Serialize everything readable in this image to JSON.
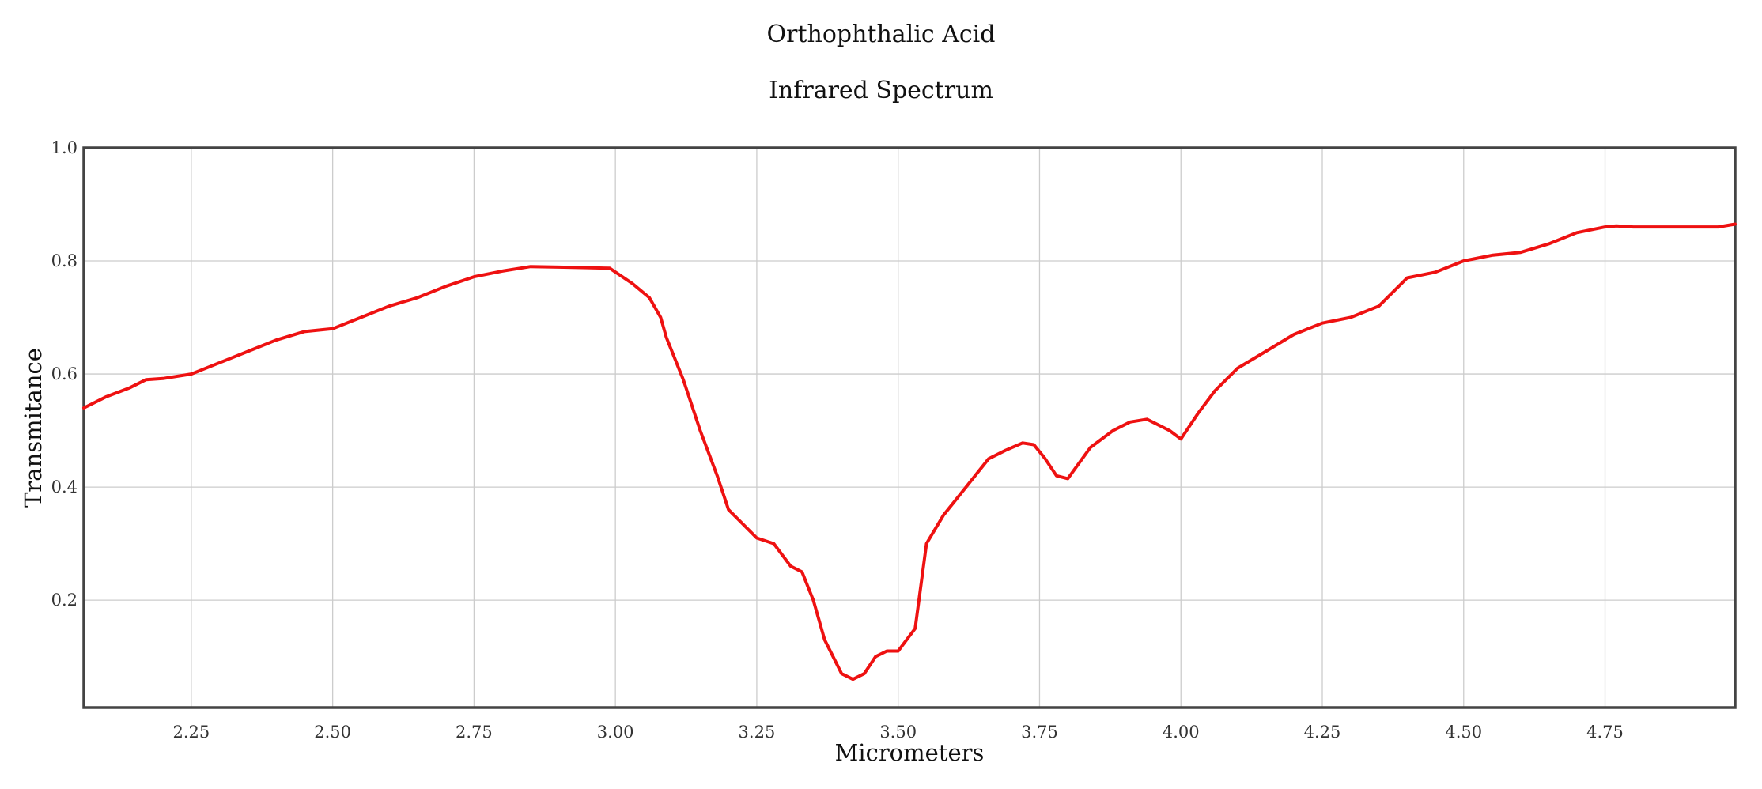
{
  "chart_data": {
    "type": "line",
    "title": "Orthophthalic Acid",
    "subtitle": "Infrared Spectrum",
    "xlabel": "Micrometers",
    "ylabel": "Transmitance",
    "xlim": [
      2.06,
      4.98
    ],
    "ylim": [
      0.01,
      1.0
    ],
    "xticks": [
      2.25,
      2.5,
      2.75,
      3.0,
      3.25,
      3.5,
      3.75,
      4.0,
      4.25,
      4.5,
      4.75
    ],
    "xtick_labels": [
      "2.25",
      "2.50",
      "2.75",
      "3.00",
      "3.25",
      "3.50",
      "3.75",
      "4.00",
      "4.25",
      "4.50",
      "4.75"
    ],
    "yticks": [
      0.2,
      0.4,
      0.6,
      0.8,
      1.0
    ],
    "ytick_labels": [
      "0.2",
      "0.4",
      "0.6",
      "0.8",
      "1.0"
    ],
    "grid": true,
    "legend": "none",
    "series_color": "#ee1111",
    "series": [
      {
        "x": [
          2.06,
          2.1,
          2.14,
          2.17,
          2.2,
          2.25,
          2.3,
          2.35,
          2.4,
          2.45,
          2.5,
          2.55,
          2.6,
          2.65,
          2.7,
          2.75,
          2.8,
          2.85,
          2.9,
          2.95,
          2.99,
          3.03,
          3.06,
          3.08,
          3.09,
          3.12,
          3.15,
          3.18,
          3.2,
          3.22,
          3.25,
          3.28,
          3.31,
          3.33,
          3.35,
          3.37,
          3.4,
          3.42,
          3.44,
          3.46,
          3.48,
          3.5,
          3.53,
          3.55,
          3.58,
          3.62,
          3.66,
          3.69,
          3.72,
          3.74,
          3.76,
          3.78,
          3.8,
          3.84,
          3.88,
          3.91,
          3.94,
          3.96,
          3.98,
          4.0,
          4.03,
          4.06,
          4.1,
          4.15,
          4.2,
          4.25,
          4.3,
          4.35,
          4.4,
          4.45,
          4.5,
          4.55,
          4.6,
          4.65,
          4.7,
          4.75,
          4.77,
          4.8,
          4.85,
          4.9,
          4.95,
          4.98
        ],
        "y": [
          0.54,
          0.56,
          0.575,
          0.59,
          0.592,
          0.6,
          0.62,
          0.64,
          0.66,
          0.675,
          0.68,
          0.7,
          0.72,
          0.735,
          0.755,
          0.772,
          0.782,
          0.79,
          0.789,
          0.788,
          0.787,
          0.76,
          0.735,
          0.7,
          0.665,
          0.59,
          0.5,
          0.42,
          0.36,
          0.34,
          0.31,
          0.3,
          0.26,
          0.25,
          0.2,
          0.13,
          0.07,
          0.06,
          0.07,
          0.1,
          0.11,
          0.11,
          0.15,
          0.3,
          0.35,
          0.4,
          0.45,
          0.465,
          0.478,
          0.475,
          0.45,
          0.42,
          0.415,
          0.47,
          0.5,
          0.515,
          0.52,
          0.51,
          0.5,
          0.485,
          0.53,
          0.57,
          0.61,
          0.64,
          0.67,
          0.69,
          0.7,
          0.72,
          0.77,
          0.78,
          0.8,
          0.81,
          0.815,
          0.83,
          0.85,
          0.86,
          0.862,
          0.86,
          0.86,
          0.86,
          0.86,
          0.865
        ]
      }
    ]
  }
}
